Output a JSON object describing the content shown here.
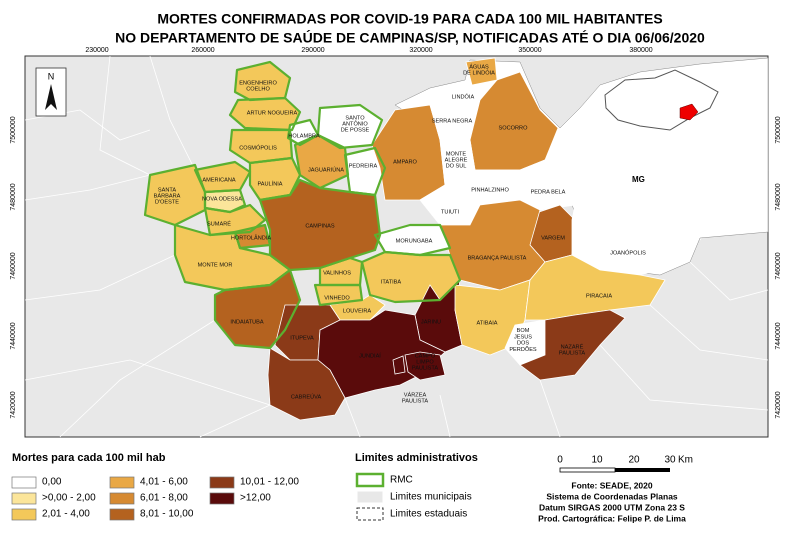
{
  "title": [
    "MORTES CONFIRMADAS POR COVID-19 PARA CADA 100 MIL HABITANTES",
    "NO DEPARTAMENTO DE SAÚDE DE CAMPINAS/SP, NOTIFICADAS ATÉ O DIA 06/06/2020"
  ],
  "coordinates": {
    "easting": [
      230000,
      260000,
      290000,
      320000,
      350000,
      380000
    ],
    "northing": [
      7500000,
      7480000,
      7460000,
      7440000,
      7420000
    ]
  },
  "map": {
    "state_label": "MG",
    "north": "N",
    "municipalities": [
      {
        "name": [
          "ENGENHEIRO",
          "COELHO"
        ]
      },
      {
        "name": [
          "ARTUR NOGUEIRA"
        ]
      },
      {
        "name": [
          "HOLAMBRA"
        ]
      },
      {
        "name": [
          "SANTO",
          "ANTÔNIO",
          "DE POSSE"
        ]
      },
      {
        "name": [
          "COSMÓPOLIS"
        ]
      },
      {
        "name": [
          "JAGUARIÚNA"
        ]
      },
      {
        "name": [
          "PEDREIRA"
        ]
      },
      {
        "name": [
          "AMPARO"
        ]
      },
      {
        "name": [
          "ÁGUAS",
          "DE LINDÓIA"
        ]
      },
      {
        "name": [
          "LINDÓIA"
        ]
      },
      {
        "name": [
          "SERRA NEGRA"
        ]
      },
      {
        "name": [
          "SOCORRO"
        ]
      },
      {
        "name": [
          "MONTE",
          "ALEGRE",
          "DO SUL"
        ]
      },
      {
        "name": [
          "PINHALZINHO"
        ]
      },
      {
        "name": [
          "PEDRA BELA"
        ]
      },
      {
        "name": [
          "TUIUTI"
        ]
      },
      {
        "name": [
          "VARGEM"
        ]
      },
      {
        "name": [
          "JOANÓPOLIS"
        ]
      },
      {
        "name": [
          "BRAGANÇA PAULISTA"
        ]
      },
      {
        "name": [
          "MORUNGABA"
        ]
      },
      {
        "name": [
          "AMERICANA"
        ]
      },
      {
        "name": [
          "PAULÍNIA"
        ]
      },
      {
        "name": [
          "NOVA ODESSA"
        ]
      },
      {
        "name": [
          "SANTA",
          "BÁRBARA",
          "D'OESTE"
        ]
      },
      {
        "name": [
          "SUMARÉ"
        ]
      },
      {
        "name": [
          "HORTOLÂNDIA"
        ]
      },
      {
        "name": [
          "CAMPINAS"
        ]
      },
      {
        "name": [
          "MONTE MOR"
        ]
      },
      {
        "name": [
          "VALINHOS"
        ]
      },
      {
        "name": [
          "ITATIBA"
        ]
      },
      {
        "name": [
          "VINHEDO"
        ]
      },
      {
        "name": [
          "LOUVEIRA"
        ]
      },
      {
        "name": [
          "INDAIATUBA"
        ]
      },
      {
        "name": [
          "ITUPEVA"
        ]
      },
      {
        "name": [
          "JARINU"
        ]
      },
      {
        "name": [
          "JUNDIAÍ"
        ]
      },
      {
        "name": [
          "CAMPO",
          "LIMPO",
          "PAULISTA"
        ]
      },
      {
        "name": [
          "VÁRZEA",
          "PAULISTA"
        ]
      },
      {
        "name": [
          "CABREÚVA"
        ]
      },
      {
        "name": [
          "ATIBAIA"
        ]
      },
      {
        "name": [
          "BOM",
          "JESUS",
          "DOS",
          "PERDÕES"
        ]
      },
      {
        "name": [
          "PIRACAIA"
        ]
      },
      {
        "name": [
          "NAZARÉ",
          "PAULISTA"
        ]
      }
    ]
  },
  "legend": {
    "title": "Mortes para cada 100 mil hab",
    "classes": [
      {
        "label": "0,00",
        "color": "#ffffff"
      },
      {
        "label": ">0,00 - 2,00",
        "color": "#fbe59a"
      },
      {
        "label": "2,01 - 4,00",
        "color": "#f3c85a"
      },
      {
        "label": "4,01 - 6,00",
        "color": "#e9a845"
      },
      {
        "label": "6,01 - 8,00",
        "color": "#d68a32"
      },
      {
        "label": "8,01 - 10,00",
        "color": "#b4621f"
      },
      {
        "label": "10,01 - 12,00",
        "color": "#8b3a18"
      },
      {
        "label": ">12,00",
        "color": "#5a0b0b"
      }
    ]
  },
  "limits": {
    "title": "Limites administrativos",
    "items": [
      "RMC",
      "Limites municipais",
      "Limites estaduais"
    ]
  },
  "scale": {
    "ticks": [
      0,
      10,
      20,
      30
    ],
    "unit": "Km"
  },
  "credits": [
    "Fonte: SEADE, 2020",
    "Sistema de Coordenadas Planas",
    "Datum SIRGAS 2000 UTM Zona 23 S",
    "Prod. Cartográfica: Felipe P. de Lima"
  ]
}
